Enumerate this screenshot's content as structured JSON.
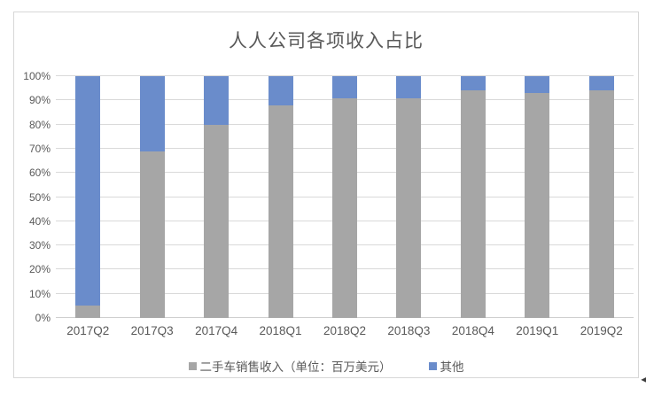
{
  "chart_data": {
    "type": "bar",
    "stacked": true,
    "percent_stacked": true,
    "title": "人人公司各项收入占比",
    "categories": [
      "2017Q2",
      "2017Q3",
      "2017Q4",
      "2018Q1",
      "2018Q2",
      "2018Q3",
      "2018Q4",
      "2019Q1",
      "2019Q2"
    ],
    "series": [
      {
        "name": "二手车销售收入（单位：百万美元）",
        "color": "#a6a6a6",
        "values": [
          5,
          69,
          80,
          88,
          91,
          91,
          94,
          93,
          94
        ]
      },
      {
        "name": "其他",
        "color": "#6a8ccb",
        "values": [
          95,
          31,
          20,
          12,
          9,
          9,
          6,
          7,
          6
        ]
      }
    ],
    "y_ticks": [
      "0%",
      "10%",
      "20%",
      "30%",
      "40%",
      "50%",
      "60%",
      "70%",
      "80%",
      "90%",
      "100%"
    ],
    "ylim": [
      0,
      100
    ],
    "xlabel": "",
    "ylabel": "",
    "grid": true,
    "legend_position": "bottom",
    "colors": {
      "title_text": "#595959",
      "axis_text": "#595959",
      "gridline": "#d9d9d9",
      "frame_border": "#d7d7d7",
      "background": "#ffffff"
    }
  },
  "icons": {
    "corner_arrow": "◄"
  }
}
